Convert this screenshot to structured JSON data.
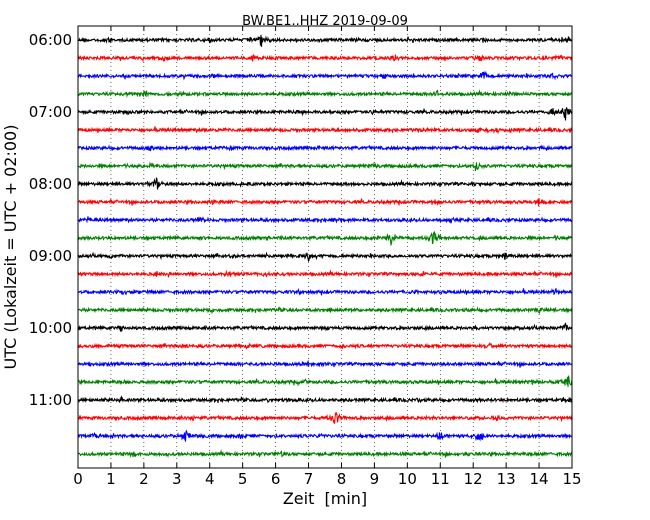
{
  "chart_data": {
    "type": "line",
    "title": "BW.BE1..HHZ 2019-09-09",
    "xlabel": "Zeit  [min]",
    "ylabel": "UTC (Lokalzeit = UTC + 02:00)",
    "xlim": [
      0,
      15
    ],
    "x_ticks": [
      "0",
      "1",
      "2",
      "3",
      "4",
      "5",
      "6",
      "7",
      "8",
      "9",
      "10",
      "11",
      "12",
      "13",
      "14",
      "15"
    ],
    "y_tick_labels": [
      "06:00",
      "07:00",
      "08:00",
      "09:00",
      "10:00",
      "11:00"
    ],
    "grid": "vertical dotted",
    "trace_colors": [
      "#000000",
      "#ff0000",
      "#0000ff",
      "#008000"
    ],
    "traces": [
      {
        "start": "06:00",
        "events": [
          [
            5.55,
            1.0
          ],
          [
            0.9,
            0.35
          ],
          [
            4.0,
            0.3
          ],
          [
            12.3,
            0.3
          ]
        ]
      },
      {
        "start": "06:15",
        "events": [
          [
            2.6,
            0.45
          ],
          [
            5.3,
            0.4
          ],
          [
            9.6,
            0.5
          ],
          [
            12.2,
            0.5
          ],
          [
            14.6,
            0.5
          ]
        ]
      },
      {
        "start": "06:30",
        "events": [
          [
            12.3,
            0.7
          ],
          [
            14.4,
            0.5
          ],
          [
            4.1,
            0.35
          ],
          [
            9.3,
            0.35
          ]
        ]
      },
      {
        "start": "06:45",
        "events": [
          [
            1.5,
            0.4
          ],
          [
            2.0,
            0.4
          ],
          [
            3.1,
            0.35
          ],
          [
            10.9,
            0.5
          ],
          [
            13.2,
            0.3
          ]
        ]
      },
      {
        "start": "07:00",
        "events": [
          [
            14.8,
            1.0
          ],
          [
            14.4,
            0.5
          ],
          [
            1.5,
            0.35
          ],
          [
            6.8,
            0.35
          ],
          [
            8.9,
            0.3
          ]
        ]
      },
      {
        "start": "07:15",
        "events": [
          [
            12.2,
            0.5
          ],
          [
            12.7,
            0.4
          ],
          [
            4.0,
            0.35
          ],
          [
            10.5,
            0.3
          ]
        ]
      },
      {
        "start": "07:30",
        "events": [
          [
            2.2,
            0.45
          ],
          [
            4.6,
            0.4
          ],
          [
            7.3,
            0.35
          ],
          [
            14.1,
            0.3
          ]
        ]
      },
      {
        "start": "07:45",
        "events": [
          [
            12.1,
            0.7
          ],
          [
            2.2,
            0.5
          ],
          [
            1.4,
            0.3
          ],
          [
            9.0,
            0.3
          ]
        ]
      },
      {
        "start": "08:00",
        "events": [
          [
            2.4,
            1.0
          ],
          [
            5.0,
            0.35
          ],
          [
            8.5,
            0.35
          ],
          [
            12.0,
            0.3
          ]
        ]
      },
      {
        "start": "08:15",
        "events": [
          [
            4.1,
            0.5
          ],
          [
            10.8,
            0.45
          ],
          [
            14.0,
            0.35
          ]
        ]
      },
      {
        "start": "08:30",
        "events": [
          [
            3.7,
            0.7
          ],
          [
            11.3,
            0.5
          ],
          [
            0.3,
            0.4
          ],
          [
            7.8,
            0.3
          ]
        ]
      },
      {
        "start": "08:45",
        "events": [
          [
            9.5,
            1.0
          ],
          [
            10.8,
            1.0
          ],
          [
            14.5,
            0.35
          ],
          [
            5.8,
            0.3
          ]
        ]
      },
      {
        "start": "09:00",
        "events": [
          [
            7.0,
            0.6
          ],
          [
            13.0,
            0.6
          ],
          [
            1.1,
            0.35
          ],
          [
            4.6,
            0.35
          ]
        ]
      },
      {
        "start": "09:15",
        "events": [
          [
            4.6,
            0.5
          ],
          [
            5.7,
            0.45
          ],
          [
            2.4,
            0.35
          ],
          [
            10.5,
            0.3
          ]
        ]
      },
      {
        "start": "09:30",
        "events": [
          [
            14.5,
            0.45
          ],
          [
            6.7,
            0.4
          ],
          [
            1.4,
            0.35
          ],
          [
            10.2,
            0.3
          ]
        ]
      },
      {
        "start": "09:45",
        "events": [
          [
            4.0,
            0.45
          ],
          [
            14.0,
            0.45
          ],
          [
            7.7,
            0.35
          ],
          [
            11.6,
            0.3
          ]
        ]
      },
      {
        "start": "10:00",
        "events": [
          [
            14.8,
            0.5
          ],
          [
            1.3,
            0.4
          ],
          [
            7.6,
            0.35
          ],
          [
            12.1,
            0.3
          ]
        ]
      },
      {
        "start": "10:15",
        "events": [
          [
            8.0,
            0.4
          ],
          [
            12.5,
            0.35
          ],
          [
            3.3,
            0.3
          ]
        ]
      },
      {
        "start": "10:30",
        "events": [
          [
            0.3,
            0.35
          ],
          [
            7.0,
            0.3
          ],
          [
            11.2,
            0.35
          ]
        ]
      },
      {
        "start": "10:45",
        "events": [
          [
            14.9,
            1.0
          ],
          [
            13.8,
            0.45
          ],
          [
            1.8,
            0.35
          ],
          [
            6.9,
            0.3
          ]
        ]
      },
      {
        "start": "11:00",
        "events": [
          [
            1.3,
            0.4
          ],
          [
            5.7,
            0.35
          ],
          [
            10.4,
            0.35
          ],
          [
            14.9,
            0.4
          ]
        ]
      },
      {
        "start": "11:15",
        "events": [
          [
            7.8,
            1.0
          ],
          [
            12.7,
            0.45
          ],
          [
            3.5,
            0.3
          ],
          [
            10.7,
            0.3
          ]
        ]
      },
      {
        "start": "11:30",
        "events": [
          [
            3.3,
            0.8
          ],
          [
            12.2,
            0.8
          ],
          [
            11.0,
            0.6
          ],
          [
            0.5,
            0.45
          ],
          [
            4.9,
            0.45
          ],
          [
            7.3,
            0.4
          ]
        ]
      },
      {
        "start": "11:45",
        "events": [
          [
            1.7,
            0.4
          ],
          [
            11.8,
            0.4
          ],
          [
            6.2,
            0.3
          ]
        ]
      }
    ]
  }
}
